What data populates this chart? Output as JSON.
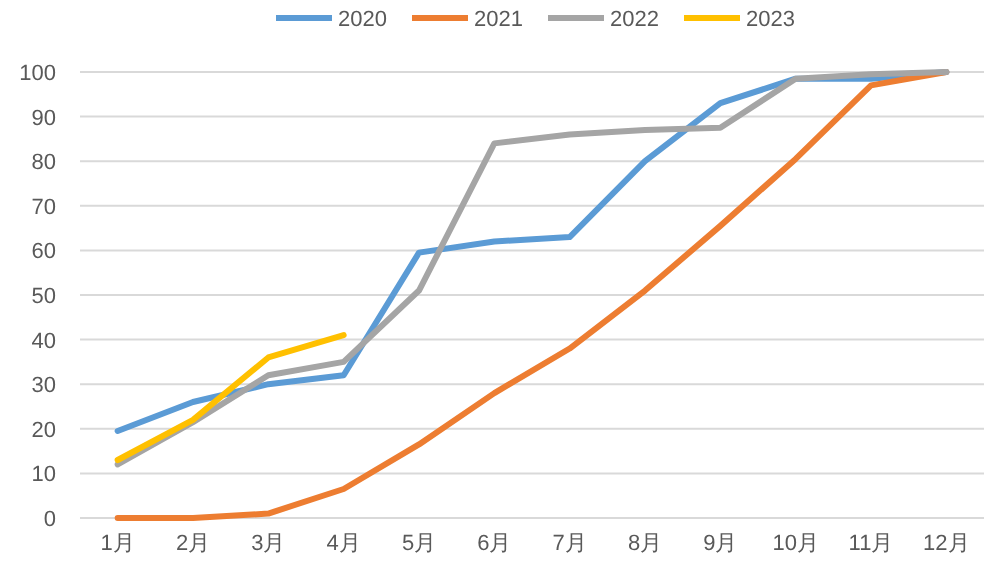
{
  "chart_data": {
    "type": "line",
    "categories": [
      "1月",
      "2月",
      "3月",
      "4月",
      "5月",
      "6月",
      "7月",
      "8月",
      "9月",
      "10月",
      "11月",
      "12月"
    ],
    "series": [
      {
        "name": "2020",
        "color": "#5b9bd5",
        "values": [
          19.5,
          26,
          30,
          32,
          59.5,
          62,
          63,
          80,
          93,
          98.5,
          98.5,
          100
        ]
      },
      {
        "name": "2021",
        "color": "#ed7d31",
        "values": [
          0,
          0,
          1,
          6.5,
          16.5,
          28,
          38,
          51,
          65.5,
          80.5,
          97,
          100
        ]
      },
      {
        "name": "2022",
        "color": "#a5a5a5",
        "values": [
          12,
          21.5,
          32,
          35,
          51,
          84,
          86,
          87,
          87.5,
          98.5,
          99.5,
          100
        ]
      },
      {
        "name": "2023",
        "color": "#ffc000",
        "values": [
          13,
          22,
          36,
          41,
          null,
          null,
          null,
          null,
          null,
          null,
          null,
          null
        ]
      }
    ],
    "ylim": [
      0,
      100
    ],
    "yticks": [
      0,
      10,
      20,
      30,
      40,
      50,
      60,
      70,
      80,
      90,
      100
    ],
    "grid": "y",
    "legend": "top",
    "marker": "none",
    "line_style": "solid"
  }
}
